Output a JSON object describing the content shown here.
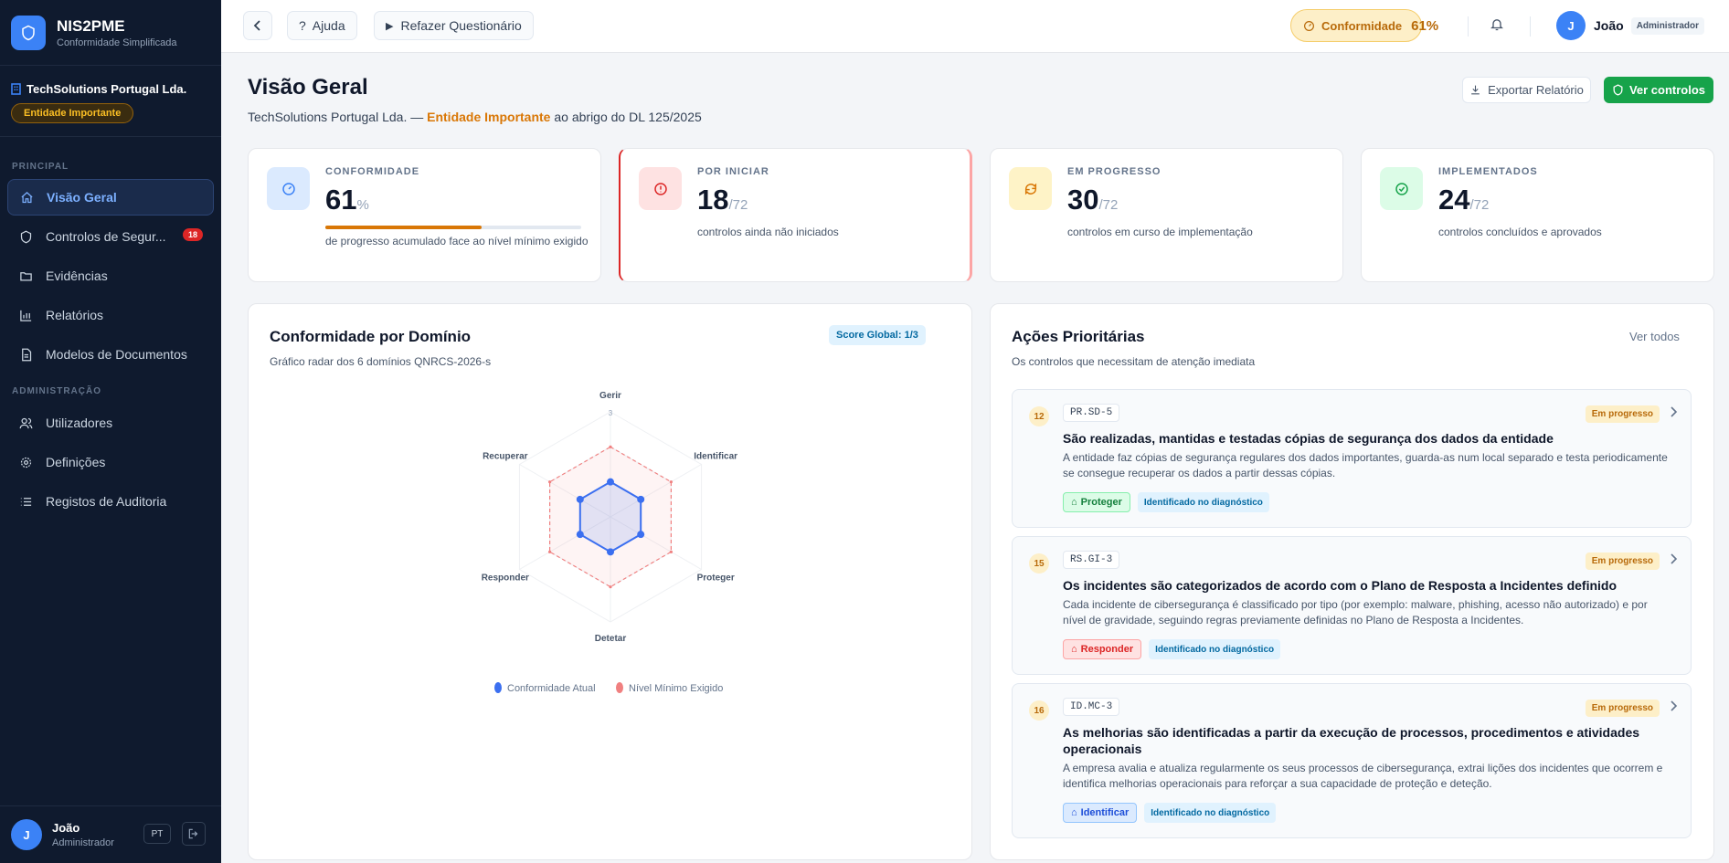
{
  "app": {
    "name": "NIS2PME",
    "subtitle": "Conformidade Simplificada"
  },
  "org": {
    "name": "TechSolutions Portugal Lda.",
    "badge": "Entidade Importante"
  },
  "nav": {
    "section_main": "PRINCIPAL",
    "section_admin": "ADMINISTRAÇÃO",
    "items": [
      {
        "label": "Visão Geral",
        "icon": "home-icon",
        "active": true
      },
      {
        "label": "Controlos de Segur...",
        "icon": "shield-icon",
        "badge": "18"
      },
      {
        "label": "Evidências",
        "icon": "folder-icon"
      },
      {
        "label": "Relatórios",
        "icon": "bar-chart-icon"
      },
      {
        "label": "Modelos de Documentos",
        "icon": "document-icon"
      }
    ],
    "admin_items": [
      {
        "label": "Utilizadores",
        "icon": "users-icon"
      },
      {
        "label": "Definições",
        "icon": "gear-icon"
      },
      {
        "label": "Registos de Auditoria",
        "icon": "list-icon"
      }
    ]
  },
  "sidebar_user": {
    "initial": "J",
    "name": "João",
    "role": "Administrador",
    "lang": "PT"
  },
  "topbar": {
    "help": "Ajuda",
    "redo": "Refazer Questionário",
    "compliance_label": "Conformidade",
    "compliance_value": "61%",
    "user_initial": "J",
    "user_name": "João",
    "user_role": "Administrador"
  },
  "page": {
    "title": "Visão Geral",
    "subtitle_org": "TechSolutions Portugal Lda. — ",
    "subtitle_entity": "Entidade Importante",
    "subtitle_rest": " ao abrigo do DL 125/2025",
    "export": "Exportar Relatório",
    "view_controls": "Ver controlos"
  },
  "stats": [
    {
      "label": "CONFORMIDADE",
      "value": "61",
      "unit": "%",
      "desc": "de progresso acumulado face ao nível mínimo exigido",
      "progress": 0.61,
      "color": "#3b82f6",
      "bg": "#dbeafe"
    },
    {
      "label": "POR INICIAR",
      "value": "18",
      "unit": "/72",
      "desc": "controlos ainda não iniciados",
      "color": "#dc2626",
      "bg": "#fee2e2"
    },
    {
      "label": "EM PROGRESSO",
      "value": "30",
      "unit": "/72",
      "desc": "controlos em curso de implementação",
      "color": "#d97706",
      "bg": "#fef3c7"
    },
    {
      "label": "IMPLEMENTADOS",
      "value": "24",
      "unit": "/72",
      "desc": "controlos concluídos e aprovados",
      "color": "#16a34a",
      "bg": "#dcfce7"
    }
  ],
  "radar": {
    "title": "Conformidade por Domínio",
    "subtitle": "Gráfico radar dos 6 domínios QNRCS-2026-s",
    "score": "Score Global: 1/3"
  },
  "chart_data": {
    "type": "radar",
    "categories": [
      "Gerir",
      "Identificar",
      "Proteger",
      "Detetar",
      "Responder",
      "Recuperar"
    ],
    "max": 3,
    "tick_label": "3",
    "series": [
      {
        "name": "Conformidade Atual",
        "values": [
          1,
          1,
          1,
          1,
          1,
          1
        ],
        "color": "#3b6ff0"
      },
      {
        "name": "Nível Mínimo Exigido",
        "values": [
          2,
          2,
          2,
          2,
          2,
          2
        ],
        "color": "#f08080"
      }
    ],
    "legend": "bottom"
  },
  "actions": {
    "title": "Ações Prioritárias",
    "subtitle": "Os controlos que necessitam de atenção imediata",
    "see_all": "Ver todos",
    "items": [
      {
        "num": "12",
        "code": "PR.SD-5",
        "status": "Em progresso",
        "title": "São realizadas, mantidas e testadas cópias de segurança dos dados da entidade",
        "desc": "A entidade faz cópias de segurança regulares dos dados importantes, guarda-as num local separado e testa periodicamente se consegue recuperar os dados a partir dessas cópias.",
        "domain": "Proteger",
        "info": "Identificado no diagnóstico",
        "tag_color": "#15803d",
        "tag_bg": "#dcfce7",
        "tag_border": "#86efac"
      },
      {
        "num": "15",
        "code": "RS.GI-3",
        "status": "Em progresso",
        "title": "Os incidentes são categorizados de acordo com o Plano de Resposta a Incidentes definido",
        "desc": "Cada incidente de cibersegurança é classificado por tipo (por exemplo: malware, phishing, acesso não autorizado) e por nível de gravidade, seguindo regras previamente definidas no Plano de Resposta a Incidentes.",
        "domain": "Responder",
        "info": "Identificado no diagnóstico",
        "tag_color": "#dc2626",
        "tag_bg": "#fee2e2",
        "tag_border": "#fca5a5"
      },
      {
        "num": "16",
        "code": "ID.MC-3",
        "status": "Em progresso",
        "title": "As melhorias são identificadas a partir da execução de processos, procedimentos e atividades operacionais",
        "desc": "A empresa avalia e atualiza regularmente os seus processos de cibersegurança, extrai lições dos incidentes que ocorrem e identifica melhorias operacionais para reforçar a sua capacidade de proteção e deteção.",
        "domain": "Identificar",
        "info": "Identificado no diagnóstico",
        "tag_color": "#1d4ed8",
        "tag_bg": "#dbeafe",
        "tag_border": "#93c5fd"
      }
    ]
  }
}
